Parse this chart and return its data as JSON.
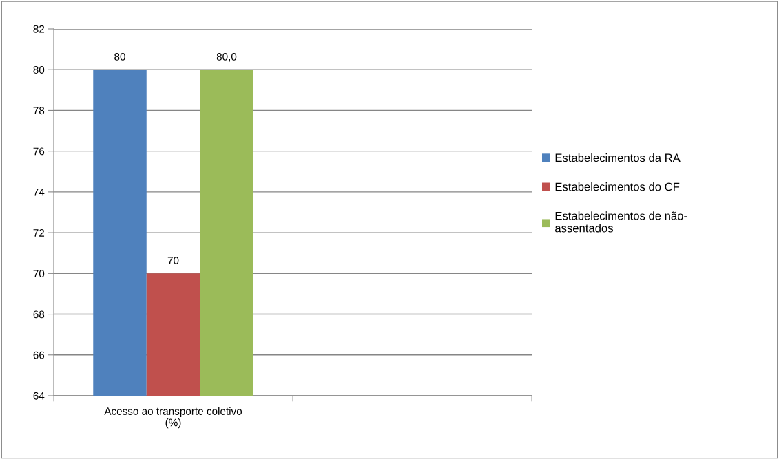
{
  "chart_data": {
    "type": "bar",
    "categories": [
      "Acesso ao transporte coletivo\n(%)",
      null
    ],
    "series": [
      {
        "name": "Estabelecimentos da RA",
        "color": "#4f81bd",
        "values": [
          80,
          null
        ],
        "value_labels": [
          "80",
          null
        ]
      },
      {
        "name": "Estabelecimentos do CF",
        "color": "#c0504d",
        "values": [
          70,
          null
        ],
        "value_labels": [
          "70",
          null
        ]
      },
      {
        "name": "Estabelecimentos de não-\nassentados",
        "color": "#9bbb59",
        "values": [
          80,
          null
        ],
        "value_labels": [
          "80,0",
          null
        ]
      }
    ],
    "ylim": [
      64,
      82
    ],
    "yticks": [
      64,
      66,
      68,
      70,
      72,
      74,
      76,
      78,
      80,
      82
    ],
    "grid": "y",
    "legend": "right"
  }
}
